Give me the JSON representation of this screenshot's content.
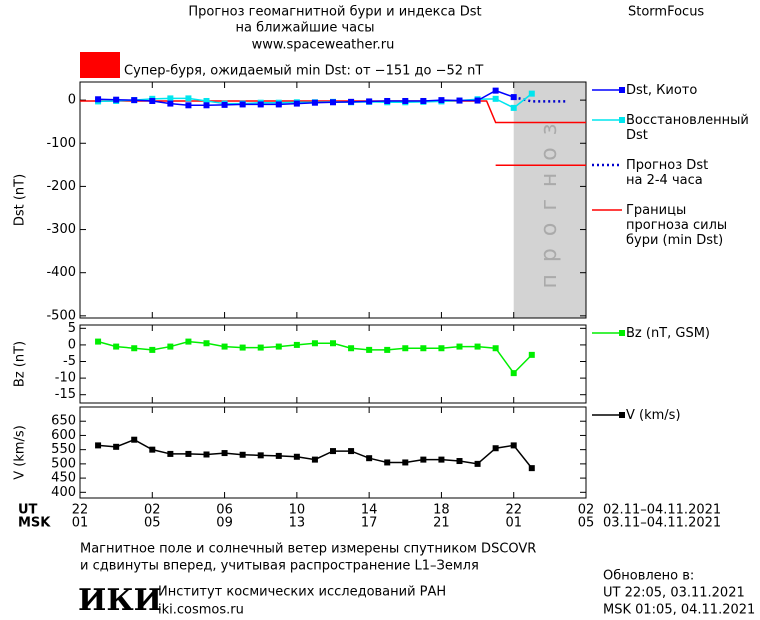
{
  "header": {
    "title": "Прогноз геомагнитной бури и индекса Dst",
    "subtitle": "на ближайшие часы",
    "url": "www.spaceweather.ru",
    "brand": "StormFocus"
  },
  "alert": {
    "color": "#ff0000",
    "text": "Супер-буря, ожидаемый min Dst: от −151 до −52 nT"
  },
  "chart_data": [
    {
      "type": "line",
      "ylabel": "Dst (nT)",
      "xlim": [
        0,
        28
      ],
      "ylim": [
        -505,
        42
      ],
      "yticks": [
        -500,
        -400,
        -300,
        -200,
        -100,
        0
      ],
      "forecast_region": {
        "x": [
          24,
          28
        ],
        "label": "прогноз",
        "color": "#d3d3d3"
      },
      "series": [
        {
          "name": "Dst, Киото",
          "color": "#0000ff",
          "marker": "square",
          "x": [
            1,
            2,
            3,
            4,
            5,
            6,
            7,
            8,
            9,
            10,
            11,
            12,
            13,
            14,
            15,
            16,
            17,
            18,
            19,
            20,
            21,
            22,
            23,
            24
          ],
          "values": [
            2,
            1,
            0,
            -2,
            -8,
            -12,
            -12,
            -11,
            -10,
            -10,
            -10,
            -8,
            -6,
            -5,
            -4,
            -3,
            -2,
            -2,
            -2,
            0,
            -1,
            -1,
            22,
            7
          ]
        },
        {
          "name": "Восстановленный\nDst",
          "color": "#00e5ee",
          "marker": "square",
          "x": [
            1,
            2,
            3,
            4,
            5,
            6,
            7,
            8,
            9,
            10,
            11,
            12,
            13,
            14,
            15,
            16,
            17,
            18,
            19,
            20,
            21,
            22,
            23,
            24,
            25
          ],
          "values": [
            -3,
            -2,
            0,
            3,
            4,
            4,
            -2,
            -8,
            -8,
            -6,
            -6,
            -5,
            -5,
            -4,
            -5,
            -4,
            -5,
            -5,
            -4,
            -3,
            -1,
            2,
            3,
            -18,
            15
          ]
        },
        {
          "name": "Прогноз Dst\nна 2-4 часа",
          "color": "#0000cc",
          "dash": "dotted",
          "x": [
            24,
            25,
            26,
            27
          ],
          "values": [
            7,
            -3,
            -3,
            -3
          ]
        },
        {
          "name": "Границы\nпрогноза силы\nбури (min Dst)",
          "color": "#ff0000",
          "x": [
            0,
            22.5,
            23,
            28
          ],
          "values": [
            -2,
            -2,
            -52,
            -52
          ]
        },
        {
          "color": "#ff0000",
          "x": [
            23,
            28
          ],
          "values": [
            -151,
            -151
          ]
        }
      ]
    },
    {
      "type": "line",
      "ylabel": "Bz (nT)",
      "xlim": [
        0,
        28
      ],
      "ylim": [
        -17.5,
        6
      ],
      "yticks": [
        -15,
        -10,
        -5,
        0,
        5
      ],
      "series": [
        {
          "name": "Bz (nT, GSM)",
          "color": "#00ee00",
          "marker": "square",
          "x": [
            1,
            2,
            3,
            4,
            5,
            6,
            7,
            8,
            9,
            10,
            11,
            12,
            13,
            14,
            15,
            16,
            17,
            18,
            19,
            20,
            21,
            22,
            23,
            24,
            25
          ],
          "values": [
            1,
            -0.5,
            -1,
            -1.5,
            -0.5,
            1,
            0.5,
            -0.5,
            -0.8,
            -0.8,
            -0.5,
            0,
            0.5,
            0.5,
            -1,
            -1.5,
            -1.5,
            -1,
            -1,
            -1,
            -0.5,
            -0.5,
            -1,
            -8.5,
            -3
          ]
        }
      ]
    },
    {
      "type": "line",
      "ylabel": "V (km/s)",
      "xlim": [
        0,
        28
      ],
      "ylim": [
        380,
        700
      ],
      "yticks": [
        400,
        450,
        500,
        550,
        600,
        650
      ],
      "xticks": [
        {
          "value": 0,
          "label": "22"
        },
        {
          "value": 4,
          "label": "02"
        },
        {
          "value": 8,
          "label": "06"
        },
        {
          "value": 12,
          "label": "10"
        },
        {
          "value": 16,
          "label": "14"
        },
        {
          "value": 20,
          "label": "18"
        },
        {
          "value": 24,
          "label": "22"
        },
        {
          "value": 28,
          "label": "02"
        }
      ],
      "xticks_msk": [
        {
          "value": 0,
          "label": "01"
        },
        {
          "value": 4,
          "label": "05"
        },
        {
          "value": 8,
          "label": "09"
        },
        {
          "value": 12,
          "label": "13"
        },
        {
          "value": 16,
          "label": "17"
        },
        {
          "value": 20,
          "label": "21"
        },
        {
          "value": 24,
          "label": "01"
        },
        {
          "value": 28,
          "label": "05"
        }
      ],
      "series": [
        {
          "name": "V (km/s)",
          "color": "#000000",
          "marker": "square",
          "x": [
            1,
            2,
            3,
            4,
            5,
            6,
            7,
            8,
            9,
            10,
            11,
            12,
            13,
            14,
            15,
            16,
            17,
            18,
            19,
            20,
            21,
            22,
            23,
            24,
            25
          ],
          "values": [
            565,
            560,
            585,
            550,
            535,
            535,
            533,
            538,
            532,
            530,
            528,
            525,
            515,
            545,
            545,
            520,
            505,
            505,
            515,
            515,
            510,
            500,
            555,
            565,
            485
          ]
        }
      ]
    }
  ],
  "time_axis": {
    "ut_label": "UT",
    "msk_label": "MSK",
    "ut_range": "02.11–04.11.2021",
    "msk_range": "03.11–04.11.2021"
  },
  "footer": {
    "note_1": "Магнитное поле и солнечный ветер измерены спутником DSCOVR",
    "note_2": "и сдвинуты вперед, учитывая распространение L1–Земля",
    "logo": "ИКИ",
    "institute": "Институт космических исследований РАН",
    "site": "iki.cosmos.ru",
    "updated": "Обновлено в:",
    "updated_ut": "UT  22:05, 03.11.2021",
    "updated_msk": "MSK 01:05, 04.11.2021"
  }
}
